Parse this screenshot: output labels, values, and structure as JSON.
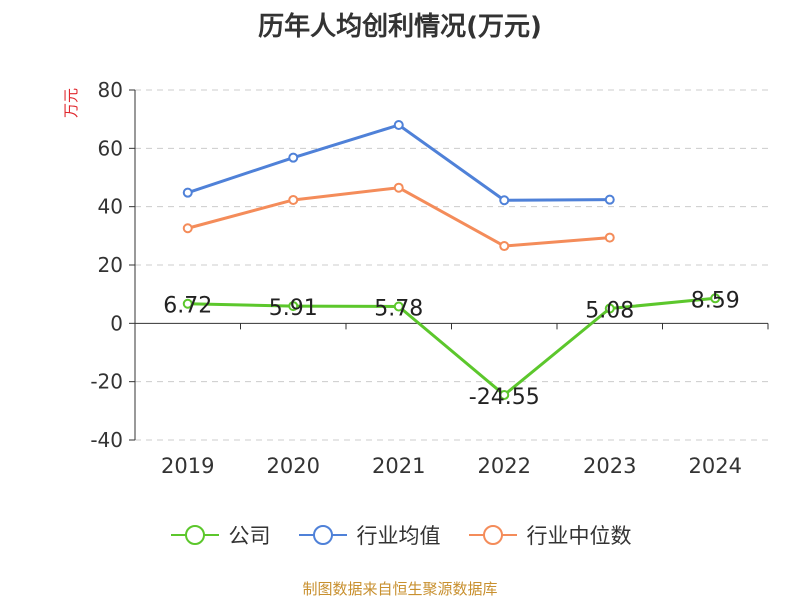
{
  "chart_data": {
    "type": "line",
    "title": "历年人均创利情况(万元)",
    "ylabel": "万元",
    "xlabel": "",
    "categories": [
      "2019",
      "2020",
      "2021",
      "2022",
      "2023",
      "2024"
    ],
    "ylim": [
      -40,
      80
    ],
    "yticks": [
      80,
      60,
      40,
      20,
      0,
      -20,
      -40
    ],
    "grid": true,
    "legend_position": "bottom",
    "series": [
      {
        "name": "公司",
        "color": "#5cc72c",
        "values": [
          6.72,
          5.91,
          5.78,
          -24.55,
          5.08,
          8.59
        ],
        "labels": [
          "6.72",
          "5.91",
          "5.78",
          "-24.55",
          "5.08",
          "8.59"
        ]
      },
      {
        "name": "行业均值",
        "color": "#4f81d8",
        "values": [
          44.8,
          56.8,
          68.0,
          42.2,
          42.4,
          null
        ]
      },
      {
        "name": "行业中位数",
        "color": "#f48c5a",
        "values": [
          32.6,
          42.3,
          46.5,
          26.5,
          29.4,
          null
        ]
      }
    ]
  },
  "source": "制图数据来自恒生聚源数据库"
}
